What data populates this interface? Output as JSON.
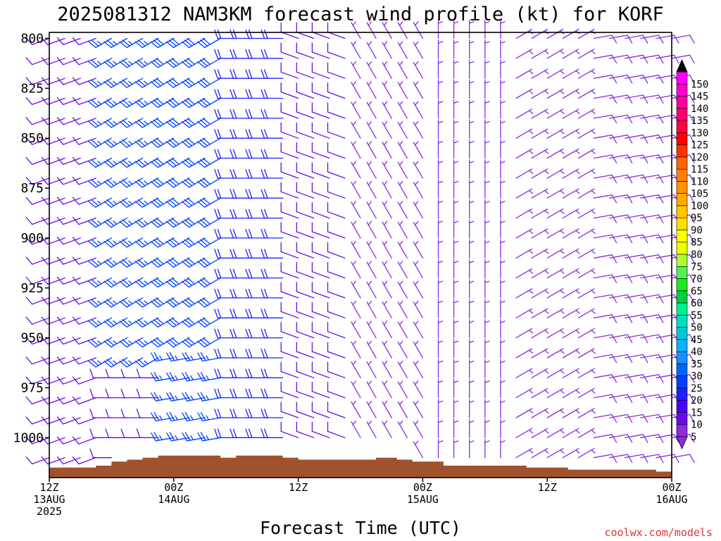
{
  "chart_data": {
    "type": "wind_barb_profile",
    "title": "2025081312 NAM3KM forecast wind profile (kt) for KORF",
    "xlabel": "Forecast Time (UTC)",
    "credit": "coolwx.com/models",
    "y_axis": {
      "label": "",
      "ticks": [
        800,
        825,
        850,
        875,
        900,
        925,
        950,
        975,
        1000
      ],
      "tick_labels": [
        "800",
        "825",
        "850",
        "875",
        "900",
        "925",
        "950",
        "975",
        "1000"
      ],
      "range_hpa": [
        797,
        1020
      ]
    },
    "x_axis": {
      "range_hours": [
        0,
        60
      ],
      "ticks": [
        {
          "hour": 0,
          "lines": [
            "12Z",
            "13AUG",
            "2025"
          ]
        },
        {
          "hour": 12,
          "lines": [
            "00Z",
            "14AUG"
          ]
        },
        {
          "hour": 24,
          "lines": [
            "12Z"
          ]
        },
        {
          "hour": 36,
          "lines": [
            "00Z",
            "15AUG"
          ]
        },
        {
          "hour": 48,
          "lines": [
            "12Z"
          ]
        },
        {
          "hour": 60,
          "lines": [
            "00Z",
            "16AUG"
          ]
        }
      ]
    },
    "levels_hpa": [
      800,
      810,
      820,
      830,
      840,
      850,
      860,
      870,
      880,
      890,
      900,
      910,
      920,
      930,
      940,
      950,
      960,
      970,
      980,
      990,
      1000,
      1010
    ],
    "time_step_hours": 1.5,
    "terrain_surface_hpa": [
      {
        "hour": 0,
        "p": 1015
      },
      {
        "hour": 4.5,
        "p": 1014
      },
      {
        "hour": 6,
        "p": 1012
      },
      {
        "hour": 7.5,
        "p": 1011
      },
      {
        "hour": 9,
        "p": 1010
      },
      {
        "hour": 10.5,
        "p": 1009
      },
      {
        "hour": 16.5,
        "p": 1010
      },
      {
        "hour": 18,
        "p": 1009
      },
      {
        "hour": 22.5,
        "p": 1010
      },
      {
        "hour": 24,
        "p": 1011
      },
      {
        "hour": 31.5,
        "p": 1010
      },
      {
        "hour": 33.5,
        "p": 1011
      },
      {
        "hour": 35,
        "p": 1012
      },
      {
        "hour": 38,
        "p": 1014
      },
      {
        "hour": 46,
        "p": 1015
      },
      {
        "hour": 50,
        "p": 1016
      },
      {
        "hour": 58.5,
        "p": 1017
      },
      {
        "hour": 60,
        "p": 1017
      }
    ],
    "wind_regimes": [
      {
        "hours": [
          0,
          6
        ],
        "levels": [
          800,
          1010
        ],
        "dir_deg": 250,
        "speed_kt": 10
      },
      {
        "hours": [
          6,
          12
        ],
        "levels": [
          800,
          960
        ],
        "dir_deg": 240,
        "speed_kt": 25
      },
      {
        "hours": [
          12,
          18
        ],
        "levels": [
          800,
          960
        ],
        "dir_deg": 240,
        "speed_kt": 28
      },
      {
        "hours": [
          12,
          18
        ],
        "levels": [
          960,
          1010
        ],
        "dir_deg": 260,
        "speed_kt": 25
      },
      {
        "hours": [
          18,
          24
        ],
        "levels": [
          800,
          1010
        ],
        "dir_deg": 270,
        "speed_kt": 20
      },
      {
        "hours": [
          24,
          30
        ],
        "levels": [
          800,
          1010
        ],
        "dir_deg": 290,
        "speed_kt": 10
      },
      {
        "hours": [
          30,
          37
        ],
        "levels": [
          800,
          1010
        ],
        "dir_deg": 330,
        "speed_kt": 7
      },
      {
        "hours": [
          37,
          44
        ],
        "levels": [
          800,
          1010
        ],
        "dir_deg": 360,
        "speed_kt": 6
      },
      {
        "hours": [
          44,
          52
        ],
        "levels": [
          800,
          1010
        ],
        "dir_deg": 60,
        "speed_kt": 6
      },
      {
        "hours": [
          52,
          60
        ],
        "levels": [
          800,
          1010
        ],
        "dir_deg": 80,
        "speed_kt": 8
      }
    ],
    "colorbar": {
      "units": "kt",
      "labels": [
        5,
        10,
        15,
        20,
        25,
        30,
        35,
        40,
        45,
        50,
        55,
        60,
        65,
        70,
        75,
        80,
        85,
        90,
        95,
        100,
        105,
        110,
        115,
        120,
        125,
        130,
        135,
        140,
        145,
        150
      ],
      "colors": [
        "#8a2be2",
        "#6a0ae8",
        "#4b00ff",
        "#2020ff",
        "#0040ff",
        "#0066ff",
        "#1a90ff",
        "#10b0ff",
        "#00c8d8",
        "#00e0c0",
        "#00f090",
        "#00d040",
        "#22e822",
        "#55f055",
        "#aaff33",
        "#eeff00",
        "#ffff00",
        "#ffe000",
        "#ffc800",
        "#ffaa00",
        "#ff9000",
        "#ff8000",
        "#ff6600",
        "#ff3300",
        "#ff0000",
        "#ff0044",
        "#ff0070",
        "#ff00a0",
        "#ff00cc",
        "#ff00ff"
      ]
    },
    "colors": {
      "terrain": "#a0522d",
      "axis": "#000000",
      "credit": "#d93636"
    }
  }
}
